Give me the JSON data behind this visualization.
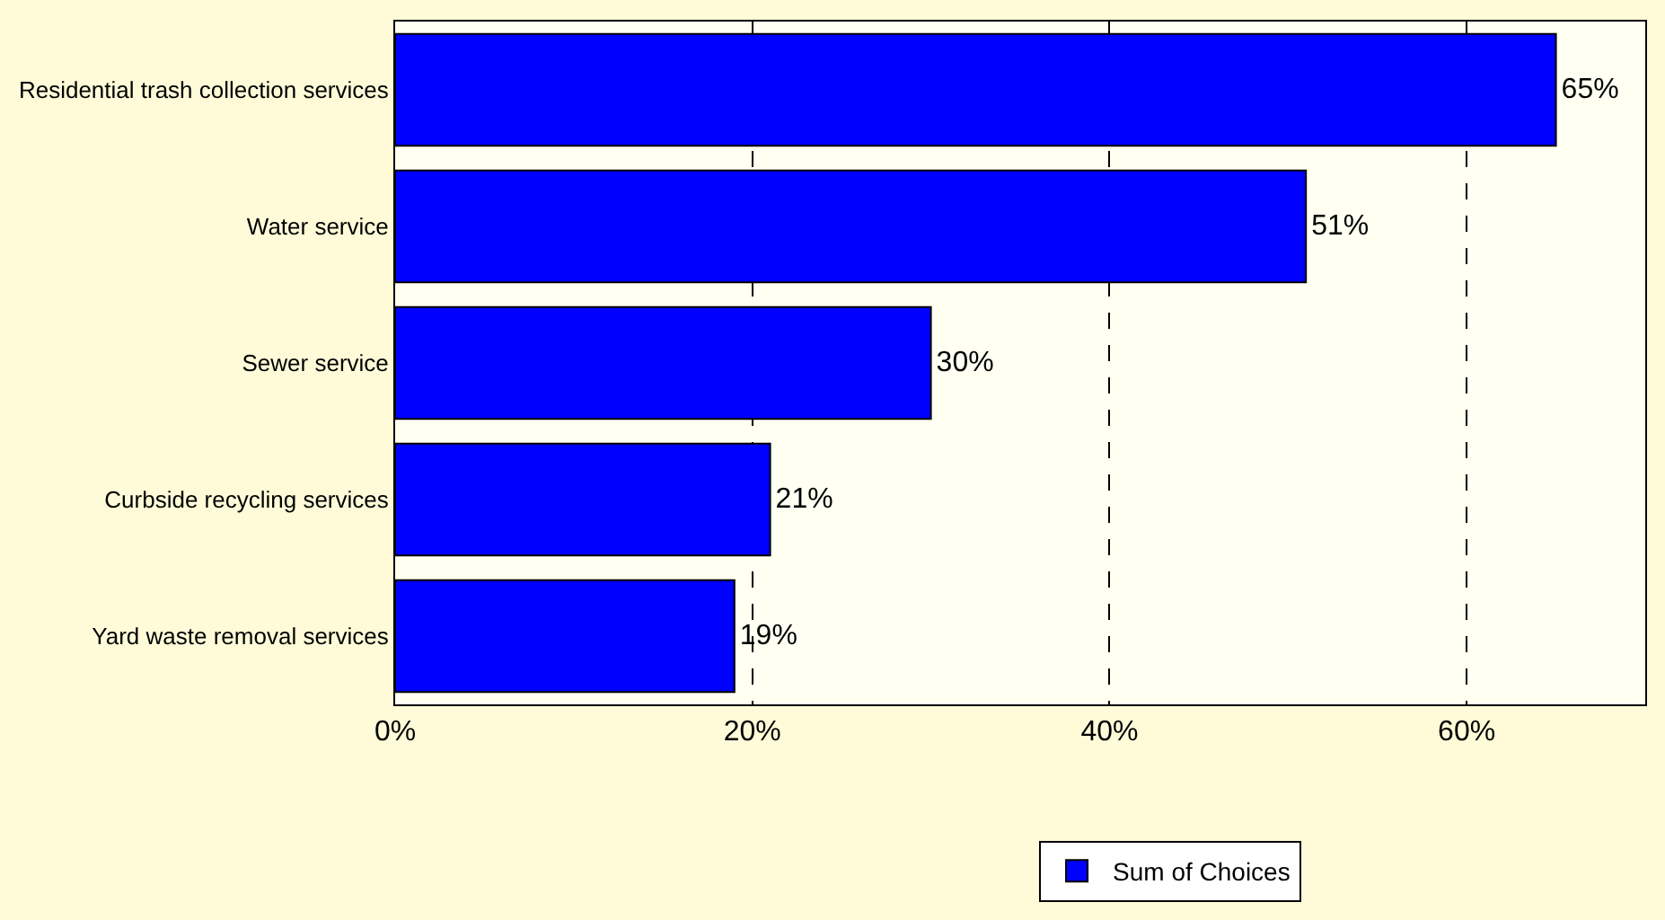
{
  "chart_data": {
    "type": "bar",
    "orientation": "horizontal",
    "categories": [
      "Residential trash collection services",
      "Water service",
      "Sewer service",
      "Curbside recycling services",
      "Yard waste removal services"
    ],
    "series": [
      {
        "name": "Sum of Choices",
        "color": "#0000ff",
        "values": [
          65,
          51,
          30,
          21,
          19
        ],
        "value_labels": [
          "65%",
          "51%",
          "30%",
          "21%",
          "19%"
        ]
      }
    ],
    "xlim": [
      0,
      70
    ],
    "xticks": [
      {
        "value": 0,
        "label": "0%"
      },
      {
        "value": 20,
        "label": "20%"
      },
      {
        "value": 40,
        "label": "40%"
      },
      {
        "value": 60,
        "label": "60%"
      }
    ],
    "grid": "x",
    "line_style": "dashed",
    "legend": "bottom"
  }
}
